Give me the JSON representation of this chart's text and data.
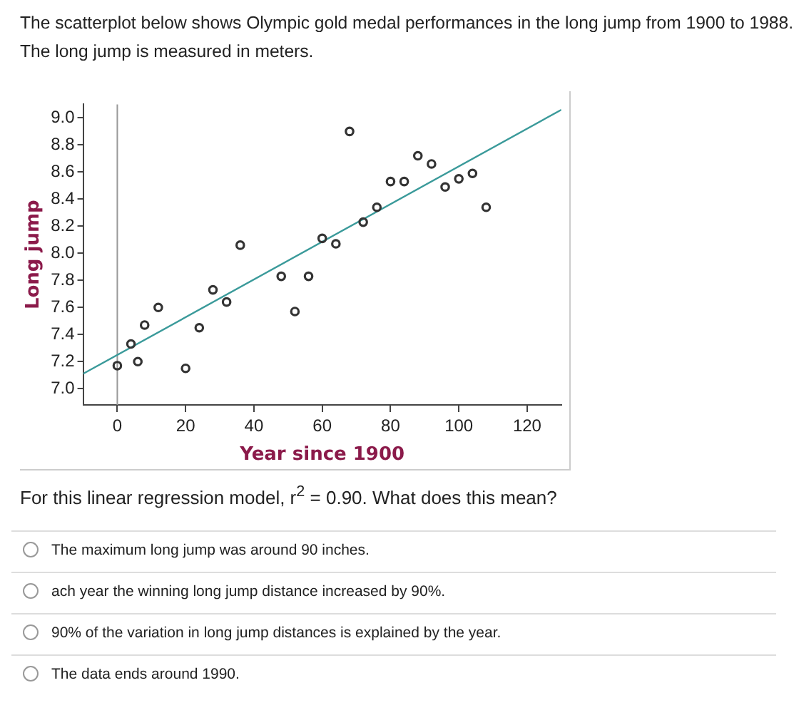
{
  "chart_data": {
    "type": "scatter",
    "title": "The scatterplot below shows Olympic gold medal performances in the long jump from 1900 to 1988.",
    "subtitle": "The long jump is measured in meters.",
    "xlabel": "Year since 1900",
    "ylabel": "Long jump",
    "series": [
      {
        "type": "scatter",
        "color": "#333333",
        "x": [
          0,
          4,
          6,
          8,
          12,
          20,
          24,
          28,
          32,
          36,
          48,
          52,
          56,
          60,
          64,
          68,
          72,
          76,
          80,
          84,
          88,
          92,
          96,
          100,
          104,
          108
        ],
        "values": [
          7.17,
          7.33,
          7.2,
          7.47,
          7.6,
          7.15,
          7.45,
          7.73,
          7.64,
          8.06,
          7.83,
          7.57,
          7.83,
          8.11,
          8.07,
          8.9,
          8.23,
          8.34,
          8.53,
          8.53,
          8.72,
          8.66,
          8.49,
          8.55,
          8.59,
          8.34
        ]
      },
      {
        "type": "line",
        "marker": "none",
        "color": "#3a9a9a",
        "x": [
          -10,
          130
        ],
        "values": [
          7.11,
          9.06
        ]
      }
    ],
    "xlim": [
      -10,
      130
    ],
    "xticks": [
      0,
      20,
      40,
      60,
      80,
      100,
      120
    ],
    "ylim": [
      6.88,
      9.1
    ],
    "yticks": [
      {
        "value": 7,
        "label": "7.0"
      },
      {
        "value": 7.2,
        "label": "7.2"
      },
      {
        "value": 7.4,
        "label": "7.4"
      },
      {
        "value": 7.6,
        "label": "7.6"
      },
      {
        "value": 7.8,
        "label": "7.8"
      },
      {
        "value": 8,
        "label": "8.0"
      },
      {
        "value": 8.2,
        "label": "8.2"
      },
      {
        "value": 8.4,
        "label": "8.4"
      },
      {
        "value": 8.6,
        "label": "8.6"
      },
      {
        "value": 8.8,
        "label": "8.8"
      },
      {
        "value": 9,
        "label": "9.0"
      }
    ],
    "ref_lines": [
      {
        "axis": "x",
        "value": 0,
        "color": "#999999"
      }
    ],
    "grid": false,
    "legend": false,
    "marker": "circle",
    "annotations": [
      "For this linear regression model, r$^{2}$ = 0.90. What does this mean?",
      "The maximum long jump was around 90 inches.",
      "ach year the winning long jump distance increased by 90%.",
      "90% of the variation in long jump distances is explained by the year.",
      "The data ends around 1990."
    ]
  }
}
